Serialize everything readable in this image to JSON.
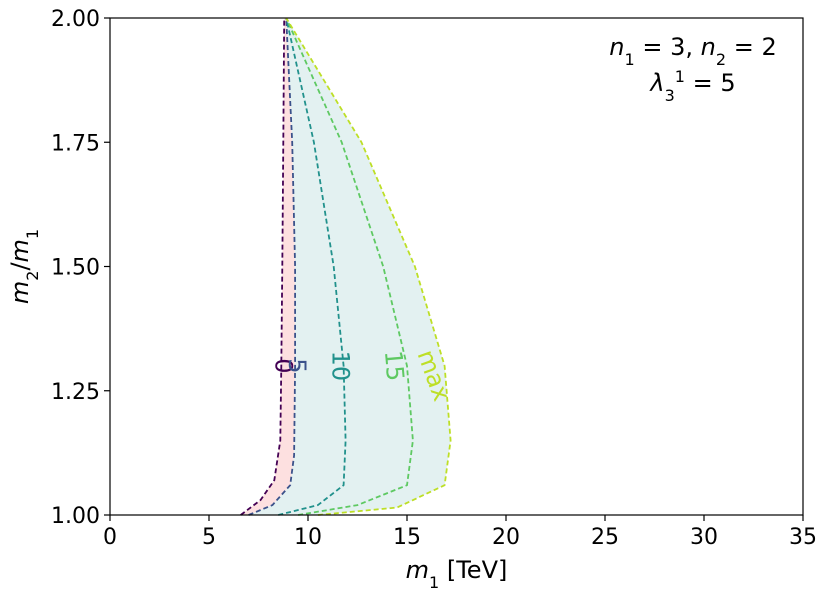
{
  "chart_data": {
    "type": "contour",
    "xlabel": "m_1 [TeV]",
    "ylabel": "m_2/m_1",
    "xlim": [
      0,
      35
    ],
    "ylim": [
      1.0,
      2.0
    ],
    "x_ticks": [
      "0",
      "5",
      "10",
      "15",
      "20",
      "25",
      "30",
      "35"
    ],
    "y_ticks": [
      "1.00",
      "1.25",
      "1.50",
      "1.75",
      "2.00"
    ],
    "annotation": {
      "line1": "n_1 = 3, n_2 = 2",
      "line2": "λ_3^1 = 5"
    },
    "regions": [
      {
        "name": "between 0 and 5",
        "color": "#fde0e0"
      },
      {
        "name": "between 5 and max",
        "color": "#e3f1f1"
      }
    ],
    "series": [
      {
        "name": "0",
        "color": "#440154",
        "points": [
          [
            6.6,
            1.0
          ],
          [
            7.6,
            1.03
          ],
          [
            8.3,
            1.07
          ],
          [
            8.6,
            1.15
          ],
          [
            8.65,
            1.3
          ],
          [
            8.7,
            1.5
          ],
          [
            8.75,
            1.75
          ],
          [
            8.8,
            2.0
          ]
        ]
      },
      {
        "name": "5",
        "color": "#3b528b",
        "points": [
          [
            7.0,
            1.0
          ],
          [
            8.2,
            1.02
          ],
          [
            9.1,
            1.06
          ],
          [
            9.3,
            1.12
          ],
          [
            9.35,
            1.3
          ],
          [
            9.35,
            1.5
          ],
          [
            9.2,
            1.75
          ],
          [
            8.9,
            2.0
          ]
        ]
      },
      {
        "name": "10",
        "color": "#21918c",
        "points": [
          [
            8.5,
            1.0
          ],
          [
            10.5,
            1.02
          ],
          [
            11.8,
            1.06
          ],
          [
            11.9,
            1.15
          ],
          [
            11.8,
            1.3
          ],
          [
            11.3,
            1.5
          ],
          [
            10.3,
            1.75
          ],
          [
            8.9,
            2.0
          ]
        ]
      },
      {
        "name": "15",
        "color": "#5ec962",
        "points": [
          [
            9.5,
            1.0
          ],
          [
            12.5,
            1.02
          ],
          [
            15.0,
            1.06
          ],
          [
            15.3,
            1.15
          ],
          [
            15.0,
            1.3
          ],
          [
            13.8,
            1.5
          ],
          [
            11.7,
            1.75
          ],
          [
            8.9,
            2.0
          ]
        ]
      },
      {
        "name": "max",
        "color": "#bddf26",
        "points": [
          [
            10.5,
            1.0
          ],
          [
            14.5,
            1.015
          ],
          [
            16.9,
            1.06
          ],
          [
            17.2,
            1.15
          ],
          [
            16.9,
            1.3
          ],
          [
            15.4,
            1.5
          ],
          [
            12.7,
            1.75
          ],
          [
            8.9,
            2.0
          ]
        ]
      }
    ],
    "contour_labels": [
      {
        "text": "0",
        "x": 8.7,
        "y": 1.3,
        "color": "#440154",
        "rotate": 90
      },
      {
        "text": "5",
        "x": 9.4,
        "y": 1.3,
        "color": "#3b528b",
        "rotate": 90
      },
      {
        "text": "10",
        "x": 11.6,
        "y": 1.3,
        "color": "#21918c",
        "rotate": 90
      },
      {
        "text": "15",
        "x": 14.3,
        "y": 1.3,
        "color": "#5ec962",
        "rotate": 85
      },
      {
        "text": "max",
        "x": 16.3,
        "y": 1.28,
        "color": "#bddf26",
        "rotate": 70
      }
    ]
  }
}
